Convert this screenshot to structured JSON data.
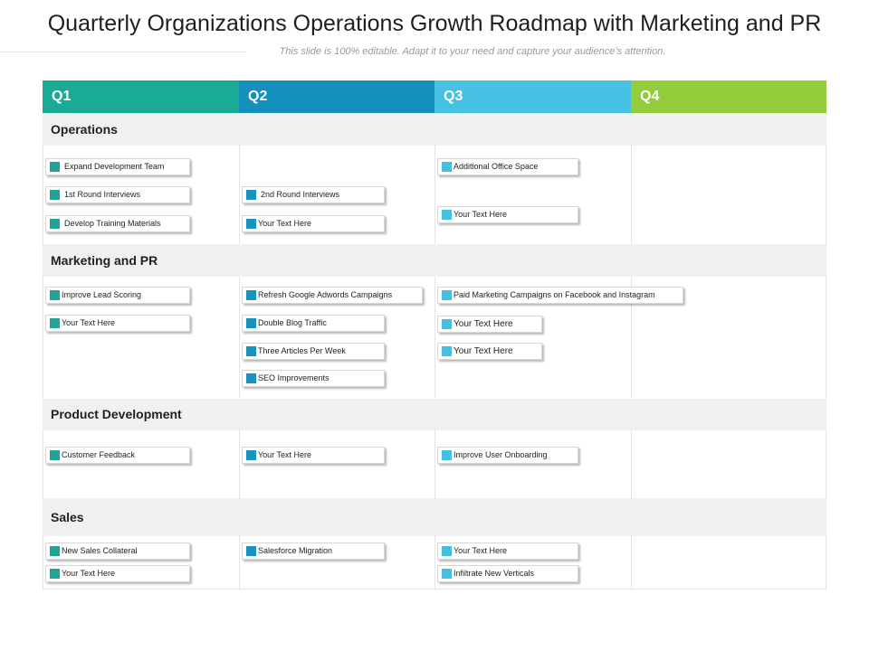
{
  "title": "Quarterly Organizations Operations Growth Roadmap with Marketing and PR",
  "subtitle": "This slide is 100% editable. Adapt it to your need and capture your audience’s attention.",
  "quarters": [
    {
      "label": "Q1",
      "color": "#1aaa96"
    },
    {
      "label": "Q2",
      "color": "#1390bb"
    },
    {
      "label": "Q3",
      "color": "#45c1e2"
    },
    {
      "label": "Q4",
      "color": "#94cd3c"
    }
  ],
  "sections": {
    "operations": {
      "label": "Operations",
      "q1": [
        "Expand Development Team",
        "1st Round Interviews",
        "Develop Training Materials"
      ],
      "q2": [
        "2nd Round Interviews",
        "Your Text Here"
      ],
      "q3": [
        "Additional Office Space",
        "Your Text Here"
      ]
    },
    "marketing": {
      "label": "Marketing and PR",
      "q1": [
        "Improve Lead Scoring",
        "Your Text Here"
      ],
      "q2": [
        "Refresh Google Adwords Campaigns",
        "Double Blog Traffic",
        "Three Articles Per Week",
        "SEO Improvements"
      ],
      "q3": [
        "Paid Marketing Campaigns on Facebook and Instagram",
        "Your Text Here",
        "Your Text Here"
      ]
    },
    "product": {
      "label": "Product Development",
      "q1": [
        "Customer Feedback"
      ],
      "q2": [
        "Your Text Here"
      ],
      "q3": [
        "Improve User Onboarding"
      ]
    },
    "sales": {
      "label": "Sales",
      "q1": [
        "New Sales Collateral",
        "Your Text Here"
      ],
      "q2": [
        "Salesforce Migration"
      ],
      "q3": [
        "Your Text Here",
        "Infiltrate New Verticals"
      ]
    }
  }
}
